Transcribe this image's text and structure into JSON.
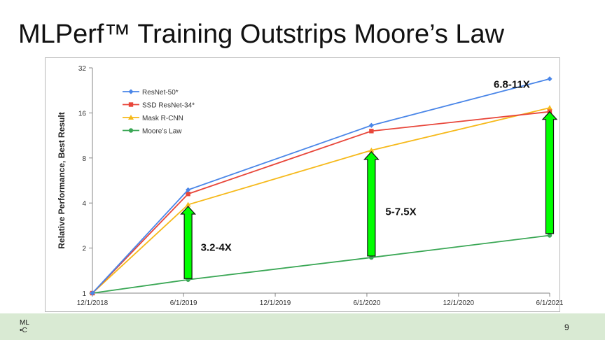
{
  "slide": {
    "title": "MLPerf™ Training Outstrips Moore’s Law",
    "page_number": "9",
    "logo_line1": "ML",
    "logo_line2": "•C"
  },
  "colors": {
    "footer_band": "#d9ead3",
    "arrow_fill": "#00ff00",
    "arrow_stroke": "#111111"
  },
  "chart_data": {
    "type": "line",
    "title": "",
    "xlabel": "",
    "ylabel": "Relative Performance, Best Result",
    "y_scale": "log2",
    "ylim": [
      1,
      32
    ],
    "y_ticks": [
      "1",
      "2",
      "4",
      "8",
      "16",
      "32"
    ],
    "xlim": [
      "12/1/2018",
      "6/1/2021"
    ],
    "x_ticks": [
      "12/1/2018",
      "6/1/2019",
      "12/1/2019",
      "6/1/2020",
      "12/1/2020",
      "6/1/2021"
    ],
    "grid": false,
    "legend_position": "top-left",
    "x": [
      "12/1/2018",
      "6/10/2019",
      "6/10/2020",
      "6/1/2021"
    ],
    "series": [
      {
        "name": "ResNet-50*",
        "color": "#4a86e8",
        "marker": "diamond",
        "values": [
          1,
          4.9,
          13.2,
          27
        ]
      },
      {
        "name": "SSD ResNet-34*",
        "color": "#e8463a",
        "marker": "square",
        "values": [
          1,
          4.6,
          12.1,
          16.3
        ]
      },
      {
        "name": "Mask R-CNN",
        "color": "#f6b91a",
        "marker": "triangle",
        "values": [
          1,
          3.9,
          9.0,
          17.3
        ]
      },
      {
        "name": "Moore’s Law",
        "color": "#3aa755",
        "marker": "circle",
        "values": [
          1,
          1.23,
          1.73,
          2.43
        ]
      }
    ],
    "annotations": [
      {
        "label": "3.2-4X",
        "x": "6/10/2019",
        "from": 1.25,
        "to": 3.8
      },
      {
        "label": "5-7.5X",
        "x": "6/10/2020",
        "from": 1.77,
        "to": 8.8
      },
      {
        "label": "6.8-11X",
        "x": "6/1/2021",
        "from": 2.5,
        "to": 16.3
      }
    ]
  }
}
